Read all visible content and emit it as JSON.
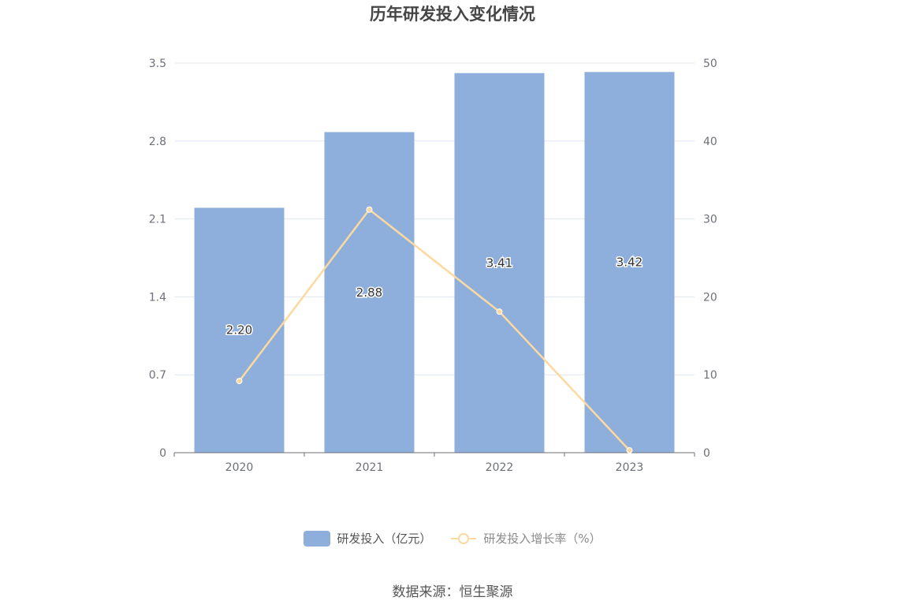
{
  "chart_data": {
    "type": "bar",
    "title": "历年研发投入变化情况",
    "categories": [
      "2020",
      "2021",
      "2022",
      "2023"
    ],
    "series": [
      {
        "name": "研发投入（亿元）",
        "type": "bar",
        "axis": "left",
        "values": [
          2.2,
          2.88,
          3.41,
          3.42
        ],
        "labels": [
          "2.20",
          "2.88",
          "3.41",
          "3.42"
        ],
        "color": "#8eaedb"
      },
      {
        "name": "研发投入增长率（%）",
        "type": "line",
        "axis": "right",
        "values": [
          9.2,
          31.2,
          18.1,
          0.3
        ],
        "color": "#fcd9a0"
      }
    ],
    "y_left": {
      "min": 0,
      "max": 3.5,
      "ticks": [
        "0",
        "0.7",
        "1.4",
        "2.1",
        "2.8",
        "3.5"
      ]
    },
    "y_right": {
      "min": 0,
      "max": 50,
      "ticks": [
        "0",
        "10",
        "20",
        "30",
        "40",
        "50"
      ]
    },
    "grid": true,
    "legend_position": "bottom"
  },
  "legend": {
    "bar_label": "研发投入（亿元）",
    "line_label": "研发投入增长率（%）"
  },
  "source": "数据来源：恒生聚源"
}
